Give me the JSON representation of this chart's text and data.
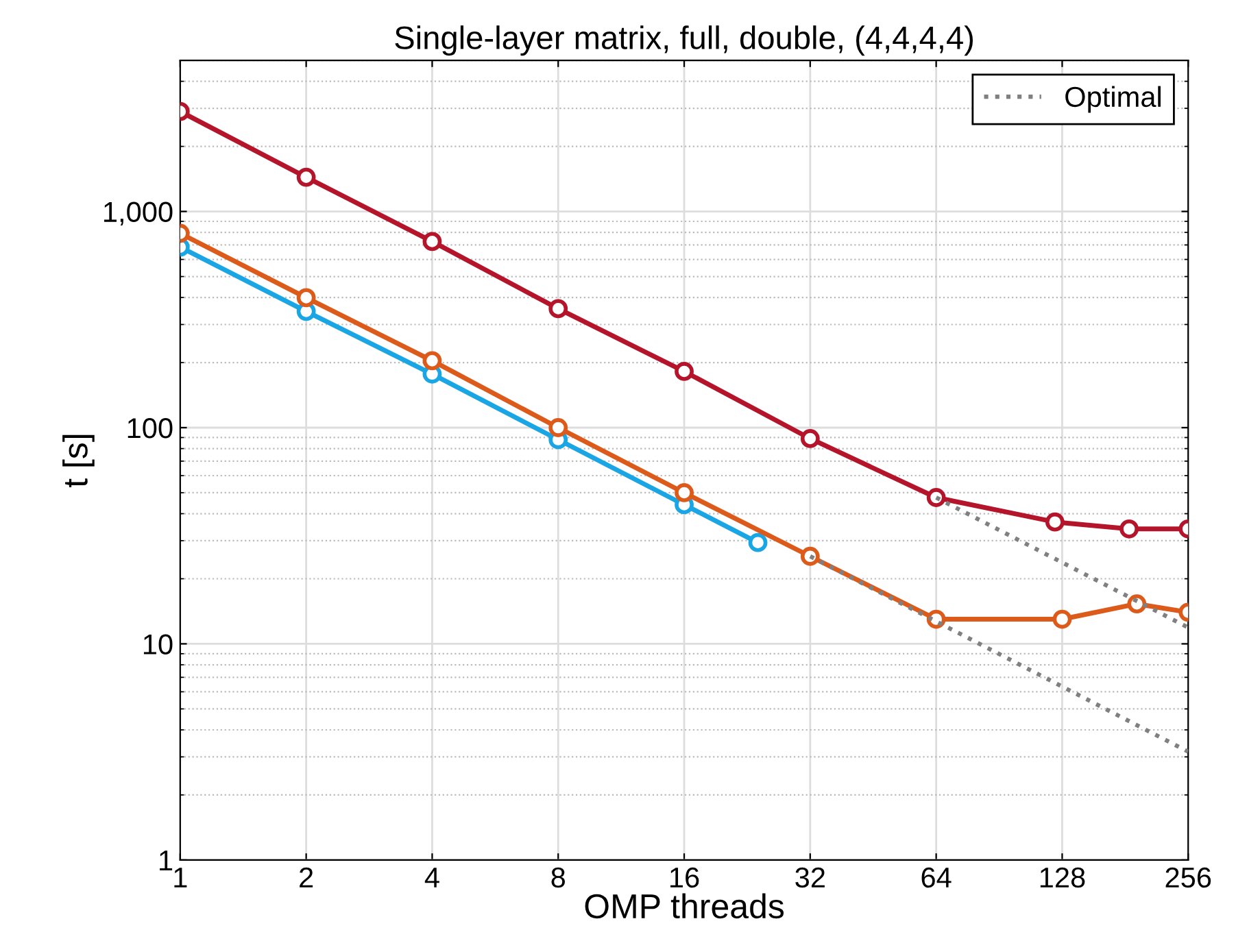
{
  "chart_data": {
    "type": "line",
    "title": "Single-layer matrix, full, double, (4,4,4,4)",
    "xlabel": "OMP threads",
    "ylabel": "t [s]",
    "log": "xy",
    "grid": true,
    "legend": "top right",
    "marker": "circle",
    "xlim": [
      1,
      256
    ],
    "xticks": [
      1,
      2,
      4,
      8,
      16,
      32,
      64,
      128,
      256
    ],
    "ylim": [
      1,
      5000
    ],
    "yticks": [
      1,
      10,
      100,
      {
        "value": 1000,
        "label": "1,000"
      }
    ],
    "series": [
      {
        "color": "#1aa6e4",
        "x": [
          1,
          2,
          4,
          8,
          16,
          24
        ],
        "values": [
          684,
          345,
          177,
          88,
          44,
          29.4
        ]
      },
      {
        "color": "#b5152b",
        "x": [
          1,
          2,
          4,
          8,
          16,
          32,
          64,
          123,
          185,
          256
        ],
        "values": [
          2900,
          1440,
          726,
          355,
          182,
          89,
          47.5,
          36.6,
          34,
          34
        ]
      },
      {
        "color": "#dc5a1a",
        "x": [
          1,
          2,
          4,
          8,
          16,
          32,
          64,
          128,
          193,
          256
        ],
        "values": [
          792,
          399,
          204,
          100,
          50,
          25.4,
          13,
          13,
          15.3,
          14
        ]
      },
      {
        "name": "Optimal",
        "color": "#808080",
        "marker": "none",
        "line_style": "dotted",
        "x": [
          32,
          256,
          null,
          64,
          256
        ],
        "values": [
          25.4,
          3.17,
          null,
          47.5,
          11.9
        ]
      }
    ]
  }
}
